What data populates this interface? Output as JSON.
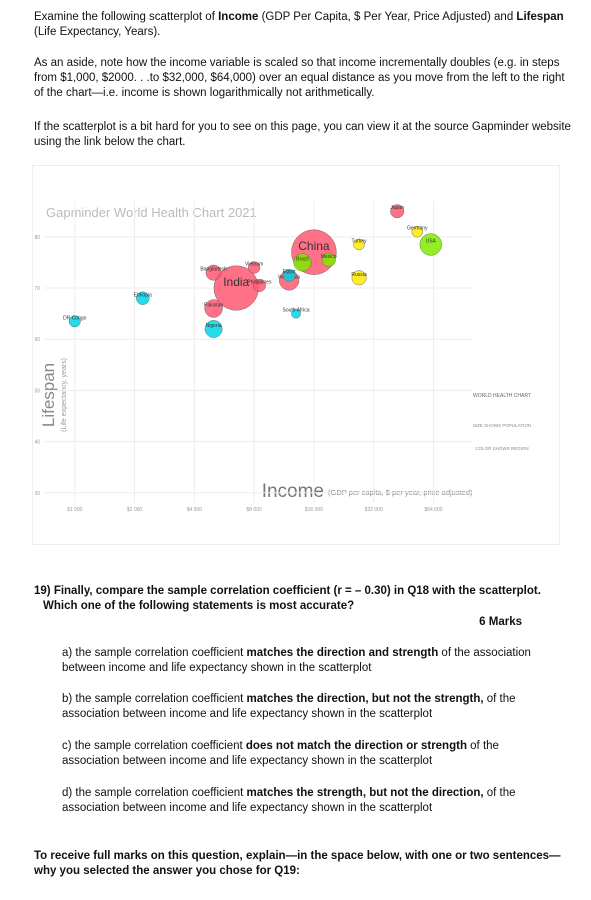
{
  "intro": [
    {
      "segments": [
        {
          "text": "Examine the following scatterplot of ",
          "bold": false
        },
        {
          "text": "Income",
          "bold": true
        },
        {
          "text": " (GDP Per Capita, $ Per Year, Price Adjusted) and ",
          "bold": false
        },
        {
          "text": "Lifespan",
          "bold": true
        },
        {
          "text": " (Life Expectancy, Years).",
          "bold": false
        }
      ]
    },
    {
      "segments": [
        {
          "text": "As an aside, note how the income variable is scaled so that income incrementally doubles (e.g. in steps from $1,000, $2000. . .to $32,000, $64,000) over an equal distance as you move from the left to the right of the chart—i.e. income is shown logarithmically not arithmetically.",
          "bold": false
        }
      ]
    },
    {
      "segments": [
        {
          "text": "If the scatterplot is a bit hard for you to see on this page, you can view it at the source Gapminder website using the link below the chart.",
          "bold": false
        }
      ]
    }
  ],
  "chart_data": {
    "type": "scatter",
    "title": "Gapminder World Health Chart 2021",
    "x_label": "Income",
    "x_sublabel": "(GDP per capita, $ per year, price adjusted)",
    "y_label": "Lifespan",
    "y_sublabel": "(Life expectancy, years)",
    "legend_title": "WORLD HEALTH CHART",
    "color_note": "COLOR SHOWS REGION",
    "size_note": "SIZE SHOWS POPULATION",
    "x_log": true,
    "xlim": [
      700,
      100000
    ],
    "xticks": [
      {
        "value": 1000,
        "label": "$1 000"
      },
      {
        "value": 2000,
        "label": "$2 000"
      },
      {
        "value": 4000,
        "label": "$4 000"
      },
      {
        "value": 8000,
        "label": "$8 000"
      },
      {
        "value": 16000,
        "label": "$16 000"
      },
      {
        "value": 32000,
        "label": "$32 000"
      },
      {
        "value": 64000,
        "label": "$64 000"
      }
    ],
    "ylim": [
      28,
      87
    ],
    "yticks": [
      30,
      40,
      50,
      60,
      70,
      80
    ],
    "grid": true,
    "points": [
      {
        "name": "China",
        "x": 16000,
        "y": 77,
        "size": 1400,
        "color": "#ff5872"
      },
      {
        "name": "India",
        "x": 6500,
        "y": 70,
        "size": 1380,
        "color": "#ff5872"
      },
      {
        "name": "Indonesia",
        "x": 12000,
        "y": 71.5,
        "size": 270,
        "color": "#ff5872"
      },
      {
        "name": "Bangladesh",
        "x": 5000,
        "y": 73,
        "size": 165,
        "color": "#ff5872"
      },
      {
        "name": "Pakistan",
        "x": 5000,
        "y": 66,
        "size": 220,
        "color": "#ff5872"
      },
      {
        "name": "Japan",
        "x": 42000,
        "y": 85,
        "size": 126,
        "color": "#ff5872"
      },
      {
        "name": "Vietnam",
        "x": 8000,
        "y": 74,
        "size": 97,
        "color": "#ff5872"
      },
      {
        "name": "Philippines",
        "x": 8500,
        "y": 70.5,
        "size": 110,
        "color": "#ff5872"
      },
      {
        "name": "USA",
        "x": 62000,
        "y": 78.5,
        "size": 330,
        "color": "#7feb00"
      },
      {
        "name": "Brazil",
        "x": 14000,
        "y": 75,
        "size": 212,
        "color": "#7feb00"
      },
      {
        "name": "Mexico",
        "x": 19000,
        "y": 75.5,
        "size": 128,
        "color": "#7feb00"
      },
      {
        "name": "Nigeria",
        "x": 5000,
        "y": 62,
        "size": 206,
        "color": "#00d5e9"
      },
      {
        "name": "Ethiopia",
        "x": 2200,
        "y": 68,
        "size": 115,
        "color": "#00d5e9"
      },
      {
        "name": "DR Congo",
        "x": 1000,
        "y": 63.5,
        "size": 90,
        "color": "#00d5e9"
      },
      {
        "name": "Egypt",
        "x": 12000,
        "y": 72.5,
        "size": 102,
        "color": "#00d5e9"
      },
      {
        "name": "South Africa",
        "x": 13000,
        "y": 65,
        "size": 59,
        "color": "#00d5e9"
      },
      {
        "name": "Russia",
        "x": 27000,
        "y": 72,
        "size": 146,
        "color": "#ffe700"
      },
      {
        "name": "Germany",
        "x": 53000,
        "y": 81,
        "size": 83,
        "color": "#ffe700"
      },
      {
        "name": "Turkey",
        "x": 27000,
        "y": 78.5,
        "size": 84,
        "color": "#ffe700"
      }
    ]
  },
  "question": {
    "text": "19) Finally, compare the sample correlation coefficient (r = – 0.30) in Q18 with the scatterplot.  Which one of the following statements is most accurate?",
    "marks": "6 Marks",
    "options": [
      {
        "segments": [
          {
            "text": "a) the sample correlation coefficient ",
            "bold": false
          },
          {
            "text": "matches the direction and strength",
            "bold": true
          },
          {
            "text": " of the association between income and life expectancy shown in the scatterplot",
            "bold": false
          }
        ]
      },
      {
        "segments": [
          {
            "text": "b) the sample correlation coefficient ",
            "bold": false
          },
          {
            "text": "matches the direction, but not the strength,",
            "bold": true
          },
          {
            "text": " of the association between income and life expectancy shown in the scatterplot",
            "bold": false
          }
        ]
      },
      {
        "segments": [
          {
            "text": "c) the sample correlation coefficient ",
            "bold": false
          },
          {
            "text": "does not match the direction or strength",
            "bold": true
          },
          {
            "text": " of the association between income and life expectancy shown in the scatterplot",
            "bold": false
          }
        ]
      },
      {
        "segments": [
          {
            "text": "d) the sample correlation coefficient ",
            "bold": false
          },
          {
            "text": "matches the strength, but not the direction,",
            "bold": true
          },
          {
            "text": " of the association between income and life expectancy shown in the scatterplot",
            "bold": false
          }
        ]
      }
    ],
    "instruction": "To receive full marks on this question, explain—in the space below, with one or two sentences—why you selected the answer you chose for Q19:"
  }
}
